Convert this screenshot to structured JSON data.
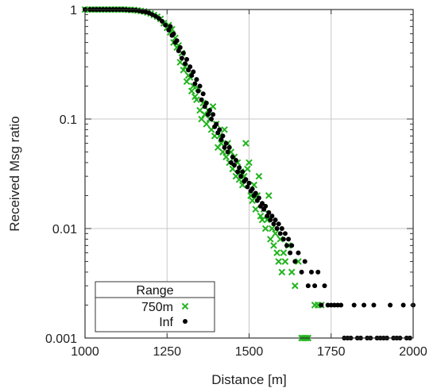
{
  "chart_data": {
    "type": "scatter",
    "title": "",
    "xlabel": "Distance [m]",
    "ylabel": "Received Msg ratio",
    "xlim": [
      1000,
      2000
    ],
    "ylim": [
      0.001,
      1
    ],
    "yscale": "log",
    "grid": true,
    "x_ticks": [
      1000,
      1250,
      1500,
      1750,
      2000
    ],
    "x_tick_labels": [
      "1000",
      "1250",
      "1500",
      "1750",
      "2000"
    ],
    "y_ticks": [
      1,
      0.1,
      0.01,
      0.001
    ],
    "y_tick_labels": [
      "1",
      "0.1",
      "0.01",
      "0.001"
    ],
    "legend": {
      "title": "Range",
      "position": "bottom-left",
      "entries": [
        "750m",
        "Inf"
      ]
    },
    "series": [
      {
        "name": "750m",
        "marker": "x",
        "color": "#22b41e",
        "points": [
          [
            1000,
            1
          ],
          [
            1010,
            1
          ],
          [
            1020,
            1
          ],
          [
            1030,
            1
          ],
          [
            1040,
            1
          ],
          [
            1050,
            1
          ],
          [
            1060,
            1
          ],
          [
            1070,
            1
          ],
          [
            1080,
            1
          ],
          [
            1090,
            1
          ],
          [
            1100,
            1
          ],
          [
            1110,
            1
          ],
          [
            1120,
            1
          ],
          [
            1130,
            0.995
          ],
          [
            1140,
            0.99
          ],
          [
            1150,
            0.99
          ],
          [
            1160,
            0.98
          ],
          [
            1170,
            0.97
          ],
          [
            1180,
            0.96
          ],
          [
            1190,
            0.94
          ],
          [
            1200,
            0.92
          ],
          [
            1210,
            0.89
          ],
          [
            1220,
            0.86
          ],
          [
            1230,
            0.82
          ],
          [
            1240,
            0.75
          ],
          [
            1250,
            0.68
          ],
          [
            1255,
            0.72
          ],
          [
            1260,
            0.62
          ],
          [
            1265,
            0.66
          ],
          [
            1270,
            0.5
          ],
          [
            1275,
            0.55
          ],
          [
            1280,
            0.45
          ],
          [
            1285,
            0.47
          ],
          [
            1290,
            0.33
          ],
          [
            1295,
            0.4
          ],
          [
            1300,
            0.28
          ],
          [
            1305,
            0.3
          ],
          [
            1310,
            0.22
          ],
          [
            1315,
            0.25
          ],
          [
            1320,
            0.24
          ],
          [
            1325,
            0.18
          ],
          [
            1330,
            0.2
          ],
          [
            1335,
            0.16
          ],
          [
            1340,
            0.15
          ],
          [
            1345,
            0.19
          ],
          [
            1350,
            0.12
          ],
          [
            1355,
            0.1
          ],
          [
            1360,
            0.14
          ],
          [
            1365,
            0.11
          ],
          [
            1370,
            0.09
          ],
          [
            1375,
            0.12
          ],
          [
            1380,
            0.1
          ],
          [
            1385,
            0.08
          ],
          [
            1390,
            0.13
          ],
          [
            1395,
            0.07
          ],
          [
            1400,
            0.09
          ],
          [
            1405,
            0.055
          ],
          [
            1410,
            0.07
          ],
          [
            1415,
            0.06
          ],
          [
            1420,
            0.05
          ],
          [
            1425,
            0.08
          ],
          [
            1430,
            0.045
          ],
          [
            1435,
            0.06
          ],
          [
            1440,
            0.04
          ],
          [
            1445,
            0.05
          ],
          [
            1450,
            0.035
          ],
          [
            1455,
            0.045
          ],
          [
            1460,
            0.03
          ],
          [
            1465,
            0.04
          ],
          [
            1470,
            0.028
          ],
          [
            1475,
            0.033
          ],
          [
            1480,
            0.025
          ],
          [
            1485,
            0.03
          ],
          [
            1490,
            0.06
          ],
          [
            1495,
            0.035
          ],
          [
            1500,
            0.04
          ],
          [
            1505,
            0.02
          ],
          [
            1510,
            0.018
          ],
          [
            1515,
            0.025
          ],
          [
            1520,
            0.015
          ],
          [
            1525,
            0.02
          ],
          [
            1530,
            0.03
          ],
          [
            1535,
            0.013
          ],
          [
            1540,
            0.012
          ],
          [
            1545,
            0.015
          ],
          [
            1550,
            0.01
          ],
          [
            1555,
            0.012
          ],
          [
            1560,
            0.02
          ],
          [
            1565,
            0.008
          ],
          [
            1570,
            0.01
          ],
          [
            1575,
            0.007
          ],
          [
            1580,
            0.009
          ],
          [
            1585,
            0.006
          ],
          [
            1590,
            0.005
          ],
          [
            1595,
            0.008
          ],
          [
            1600,
            0.004
          ],
          [
            1605,
            0.006
          ],
          [
            1610,
            0.005
          ],
          [
            1620,
            0.007
          ],
          [
            1630,
            0.004
          ],
          [
            1640,
            0.003
          ],
          [
            1650,
            0.005
          ],
          [
            1660,
            0.001
          ],
          [
            1665,
            0.001
          ],
          [
            1670,
            0.001
          ],
          [
            1675,
            0.001
          ],
          [
            1680,
            0.001
          ],
          [
            1700,
            0.002
          ],
          [
            1710,
            0.002
          ],
          [
            1720,
            0.002
          ]
        ]
      },
      {
        "name": "Inf",
        "marker": "dot",
        "color": "#000000",
        "points": [
          [
            1000,
            1
          ],
          [
            1015,
            1
          ],
          [
            1025,
            1
          ],
          [
            1035,
            1
          ],
          [
            1045,
            1
          ],
          [
            1055,
            1
          ],
          [
            1065,
            1
          ],
          [
            1075,
            1
          ],
          [
            1085,
            1
          ],
          [
            1095,
            1
          ],
          [
            1105,
            1
          ],
          [
            1115,
            1
          ],
          [
            1125,
            0.995
          ],
          [
            1135,
            0.99
          ],
          [
            1145,
            0.99
          ],
          [
            1155,
            0.985
          ],
          [
            1165,
            0.975
          ],
          [
            1175,
            0.96
          ],
          [
            1185,
            0.95
          ],
          [
            1195,
            0.93
          ],
          [
            1205,
            0.9
          ],
          [
            1215,
            0.87
          ],
          [
            1225,
            0.83
          ],
          [
            1235,
            0.78
          ],
          [
            1245,
            0.72
          ],
          [
            1255,
            0.65
          ],
          [
            1260,
            0.7
          ],
          [
            1265,
            0.58
          ],
          [
            1270,
            0.6
          ],
          [
            1275,
            0.5
          ],
          [
            1280,
            0.52
          ],
          [
            1285,
            0.42
          ],
          [
            1290,
            0.45
          ],
          [
            1295,
            0.36
          ],
          [
            1300,
            0.4
          ],
          [
            1305,
            0.32
          ],
          [
            1310,
            0.35
          ],
          [
            1315,
            0.28
          ],
          [
            1320,
            0.3
          ],
          [
            1325,
            0.25
          ],
          [
            1330,
            0.27
          ],
          [
            1335,
            0.21
          ],
          [
            1340,
            0.23
          ],
          [
            1345,
            0.18
          ],
          [
            1350,
            0.2
          ],
          [
            1355,
            0.15
          ],
          [
            1360,
            0.17
          ],
          [
            1365,
            0.13
          ],
          [
            1370,
            0.14
          ],
          [
            1375,
            0.11
          ],
          [
            1380,
            0.12
          ],
          [
            1385,
            0.1
          ],
          [
            1390,
            0.11
          ],
          [
            1395,
            0.085
          ],
          [
            1400,
            0.09
          ],
          [
            1405,
            0.075
          ],
          [
            1410,
            0.08
          ],
          [
            1415,
            0.065
          ],
          [
            1420,
            0.07
          ],
          [
            1425,
            0.055
          ],
          [
            1430,
            0.06
          ],
          [
            1435,
            0.05
          ],
          [
            1440,
            0.055
          ],
          [
            1445,
            0.04
          ],
          [
            1450,
            0.045
          ],
          [
            1455,
            0.038
          ],
          [
            1460,
            0.042
          ],
          [
            1465,
            0.033
          ],
          [
            1470,
            0.036
          ],
          [
            1475,
            0.03
          ],
          [
            1480,
            0.033
          ],
          [
            1485,
            0.027
          ],
          [
            1490,
            0.028
          ],
          [
            1495,
            0.024
          ],
          [
            1500,
            0.026
          ],
          [
            1505,
            0.022
          ],
          [
            1510,
            0.023
          ],
          [
            1515,
            0.02
          ],
          [
            1520,
            0.021
          ],
          [
            1525,
            0.018
          ],
          [
            1530,
            0.019
          ],
          [
            1535,
            0.016
          ],
          [
            1540,
            0.017
          ],
          [
            1545,
            0.015
          ],
          [
            1550,
            0.016
          ],
          [
            1555,
            0.013
          ],
          [
            1560,
            0.014
          ],
          [
            1565,
            0.012
          ],
          [
            1570,
            0.013
          ],
          [
            1575,
            0.011
          ],
          [
            1580,
            0.012
          ],
          [
            1585,
            0.01
          ],
          [
            1590,
            0.011
          ],
          [
            1595,
            0.009
          ],
          [
            1600,
            0.01
          ],
          [
            1605,
            0.008
          ],
          [
            1610,
            0.009
          ],
          [
            1615,
            0.007
          ],
          [
            1620,
            0.008
          ],
          [
            1625,
            0.006
          ],
          [
            1630,
            0.007
          ],
          [
            1640,
            0.005
          ],
          [
            1650,
            0.006
          ],
          [
            1660,
            0.004
          ],
          [
            1670,
            0.005
          ],
          [
            1680,
            0.003
          ],
          [
            1690,
            0.004
          ],
          [
            1700,
            0.003
          ],
          [
            1710,
            0.004
          ],
          [
            1720,
            0.002
          ],
          [
            1730,
            0.003
          ],
          [
            1740,
            0.002
          ],
          [
            1750,
            0.002
          ],
          [
            1760,
            0.002
          ],
          [
            1770,
            0.002
          ],
          [
            1780,
            0.002
          ],
          [
            1790,
            0.001
          ],
          [
            1800,
            0.001
          ],
          [
            1810,
            0.001
          ],
          [
            1820,
            0.002
          ],
          [
            1830,
            0.001
          ],
          [
            1840,
            0.001
          ],
          [
            1850,
            0.002
          ],
          [
            1860,
            0.001
          ],
          [
            1870,
            0.001
          ],
          [
            1880,
            0.002
          ],
          [
            1890,
            0.001
          ],
          [
            1900,
            0.001
          ],
          [
            1910,
            0.001
          ],
          [
            1920,
            0.001
          ],
          [
            1930,
            0.002
          ],
          [
            1940,
            0.001
          ],
          [
            1950,
            0.001
          ],
          [
            1960,
            0.001
          ],
          [
            1970,
            0.002
          ],
          [
            1980,
            0.001
          ],
          [
            1990,
            0.001
          ],
          [
            2000,
            0.002
          ]
        ]
      }
    ]
  }
}
